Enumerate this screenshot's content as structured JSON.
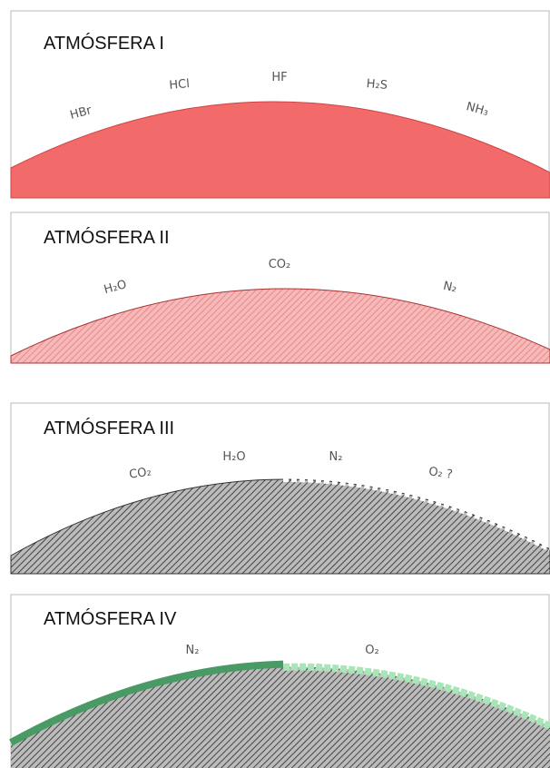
{
  "panels": [
    {
      "title": "ATMÓSFERA I",
      "labels": [
        "HBr",
        "HCl",
        "HF",
        "H₂S",
        "NH₃"
      ]
    },
    {
      "title": "ATMÓSFERA II",
      "labels": [
        "H₂O",
        "CO₂",
        "N₂"
      ]
    },
    {
      "title": "ATMÓSFERA III",
      "labels": [
        "CO₂",
        "H₂O",
        "N₂",
        "O₂ ?"
      ]
    },
    {
      "title": "ATMÓSFERA IV",
      "labels": [
        "N₂",
        "O₂"
      ]
    }
  ]
}
